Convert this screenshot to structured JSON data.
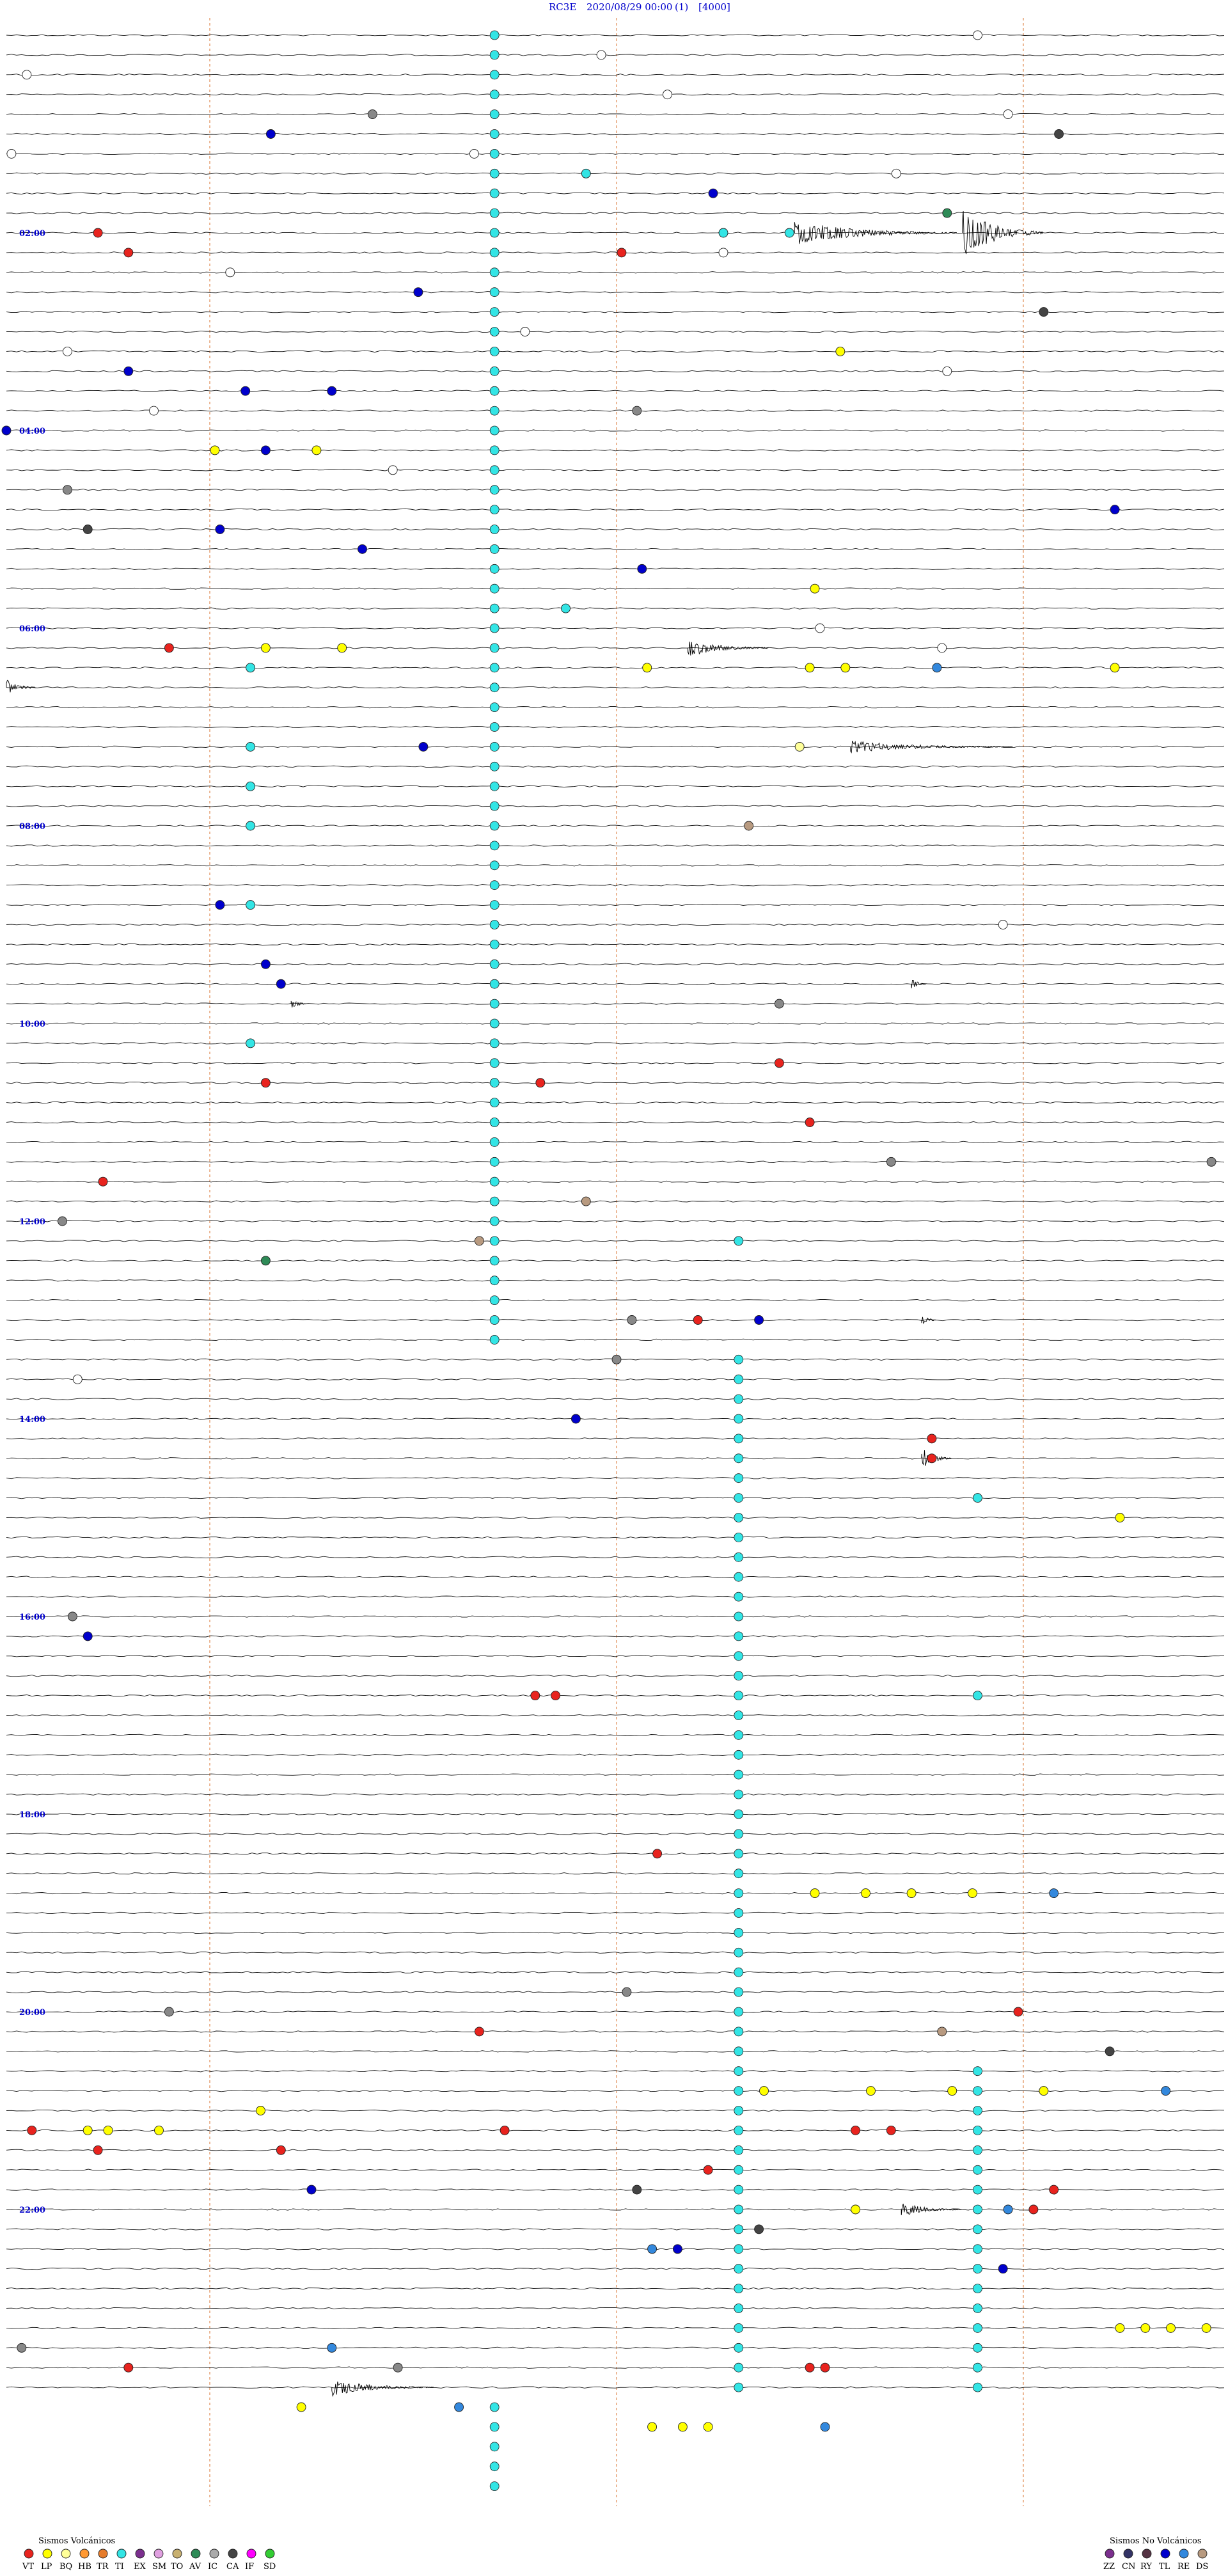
{
  "header": {
    "station": "RC3E",
    "datetime": "2020/08/29 00:00",
    "channel": "(1)",
    "scale": "[4000]"
  },
  "chart_data": {
    "type": "helicorder",
    "hour_labels": [
      "02:00",
      "04:00",
      "06:00",
      "08:00",
      "10:00",
      "12:00",
      "14:00",
      "16:00",
      "18:00",
      "20:00",
      "22:00"
    ],
    "hour_label_lines": [
      10,
      20,
      30,
      40,
      50,
      60,
      70,
      80,
      90,
      100,
      110
    ],
    "total_lines": 120,
    "minutes_per_line": 12,
    "dashed_minute_marks": [
      2,
      6,
      10
    ],
    "event_colors": {
      "VT": "#e8231e",
      "LP": "#ffff00",
      "BQ": "#ffff99",
      "HB": "#ff9933",
      "TR": "#e57c2c",
      "TI": "#33e5e5",
      "EX": "#7b2f8e",
      "SM": "#e0a0e0",
      "TO": "#c8b070",
      "AV": "#2e8b57",
      "IC": "#aaaaaa",
      "CA": "#444444",
      "IF": "#ff00ff",
      "SD": "#33cc33",
      "ZZ": "#7b2f8e",
      "CN": "#333366",
      "RY": "#553344",
      "TL": "#0000cc",
      "RE": "#3388dd",
      "DS": "#b89a80",
      "UNK": "#ffffff",
      "GRAY": "#888888"
    },
    "events": [
      {
        "line": 0,
        "min": 9.55,
        "type": "UNK"
      },
      {
        "line": 1,
        "min": 5.85,
        "type": "UNK"
      },
      {
        "line": 2,
        "min": 0.2,
        "type": "UNK"
      },
      {
        "line": 3,
        "min": 6.5,
        "type": "UNK"
      },
      {
        "line": 4,
        "min": 3.6,
        "type": "GRAY"
      },
      {
        "line": 4,
        "min": 9.85,
        "type": "UNK"
      },
      {
        "line": 5,
        "min": 2.6,
        "type": "TL"
      },
      {
        "line": 5,
        "min": 10.35,
        "type": "CA"
      },
      {
        "line": 6,
        "min": 0.05,
        "type": "UNK"
      },
      {
        "line": 6,
        "min": 4.6,
        "type": "UNK"
      },
      {
        "line": 7,
        "min": 5.7,
        "type": "TI"
      },
      {
        "line": 7,
        "min": 8.75,
        "type": "UNK"
      },
      {
        "line": 8,
        "min": 6.95,
        "type": "TL"
      },
      {
        "line": 9,
        "min": 9.25,
        "type": "AV"
      },
      {
        "line": 10,
        "min": 0.9,
        "type": "VT"
      },
      {
        "line": 10,
        "min": 7.05,
        "type": "TI"
      },
      {
        "line": 10,
        "min": 7.7,
        "type": "TI"
      },
      {
        "line": 11,
        "min": 1.2,
        "type": "VT"
      },
      {
        "line": 11,
        "min": 6.05,
        "type": "VT"
      },
      {
        "line": 11,
        "min": 7.05,
        "type": "UNK"
      },
      {
        "line": 12,
        "min": 2.2,
        "type": "UNK"
      },
      {
        "line": 13,
        "min": 4.05,
        "type": "TL"
      },
      {
        "line": 14,
        "min": 10.2,
        "type": "CA"
      },
      {
        "line": 15,
        "min": 5.1,
        "type": "UNK"
      },
      {
        "line": 16,
        "min": 8.2,
        "type": "LP"
      },
      {
        "line": 16,
        "min": 0.6,
        "type": "UNK"
      },
      {
        "line": 17,
        "min": 1.2,
        "type": "TL"
      },
      {
        "line": 17,
        "min": 9.25,
        "type": "UNK"
      },
      {
        "line": 18,
        "min": 2.35,
        "type": "TL"
      },
      {
        "line": 18,
        "min": 3.2,
        "type": "TL"
      },
      {
        "line": 19,
        "min": 6.2,
        "type": "GRAY"
      },
      {
        "line": 19,
        "min": 1.45,
        "type": "UNK"
      },
      {
        "line": 20,
        "min": 0.0,
        "type": "TL"
      },
      {
        "line": 21,
        "min": 2.05,
        "type": "LP"
      },
      {
        "line": 21,
        "min": 2.55,
        "type": "TL"
      },
      {
        "line": 21,
        "min": 3.05,
        "type": "LP"
      },
      {
        "line": 22,
        "min": 3.8,
        "type": "UNK"
      },
      {
        "line": 23,
        "min": 0.6,
        "type": "GRAY"
      },
      {
        "line": 24,
        "min": 10.9,
        "type": "TL"
      },
      {
        "line": 25,
        "min": 0.8,
        "type": "CA"
      },
      {
        "line": 25,
        "min": 2.1,
        "type": "TL"
      },
      {
        "line": 26,
        "min": 3.5,
        "type": "TL"
      },
      {
        "line": 27,
        "min": 6.25,
        "type": "TL"
      },
      {
        "line": 28,
        "min": 7.95,
        "type": "LP"
      },
      {
        "line": 29,
        "min": 5.5,
        "type": "TI"
      },
      {
        "line": 30,
        "min": 8.0,
        "type": "UNK"
      },
      {
        "line": 31,
        "min": 1.6,
        "type": "VT"
      },
      {
        "line": 31,
        "min": 2.55,
        "type": "LP"
      },
      {
        "line": 31,
        "min": 3.3,
        "type": "LP"
      },
      {
        "line": 31,
        "min": 9.2,
        "type": "UNK"
      },
      {
        "line": 32,
        "min": 2.4,
        "type": "TI"
      },
      {
        "line": 32,
        "min": 6.3,
        "type": "LP"
      },
      {
        "line": 32,
        "min": 7.9,
        "type": "LP"
      },
      {
        "line": 32,
        "min": 8.25,
        "type": "LP"
      },
      {
        "line": 32,
        "min": 9.15,
        "type": "RE"
      },
      {
        "line": 32,
        "min": 10.9,
        "type": "LP"
      },
      {
        "line": 36,
        "min": 2.4,
        "type": "TI"
      },
      {
        "line": 36,
        "min": 4.1,
        "type": "TL"
      },
      {
        "line": 36,
        "min": 7.8,
        "type": "BQ"
      },
      {
        "line": 38,
        "min": 2.4,
        "type": "TI"
      },
      {
        "line": 40,
        "min": 2.4,
        "type": "TI"
      },
      {
        "line": 40,
        "min": 7.3,
        "type": "DS"
      },
      {
        "line": 44,
        "min": 2.1,
        "type": "TL"
      },
      {
        "line": 44,
        "min": 2.4,
        "type": "TI"
      },
      {
        "line": 45,
        "min": 9.8,
        "type": "UNK"
      },
      {
        "line": 47,
        "min": 2.55,
        "type": "TL"
      },
      {
        "line": 48,
        "min": 2.7,
        "type": "TL"
      },
      {
        "line": 49,
        "min": 7.6,
        "type": "GRAY"
      },
      {
        "line": 51,
        "min": 2.4,
        "type": "TI"
      },
      {
        "line": 52,
        "min": 7.6,
        "type": "VT"
      },
      {
        "line": 53,
        "min": 2.55,
        "type": "VT"
      },
      {
        "line": 53,
        "min": 5.25,
        "type": "VT"
      },
      {
        "line": 55,
        "min": 7.9,
        "type": "VT"
      },
      {
        "line": 57,
        "min": 8.7,
        "type": "GRAY"
      },
      {
        "line": 57,
        "min": 11.85,
        "type": "GRAY"
      },
      {
        "line": 58,
        "min": 0.95,
        "type": "VT"
      },
      {
        "line": 59,
        "min": 5.7,
        "type": "DS"
      },
      {
        "line": 60,
        "min": 0.55,
        "type": "GRAY"
      },
      {
        "line": 61,
        "min": 4.65,
        "type": "DS"
      },
      {
        "line": 61,
        "min": 7.2,
        "type": "TI"
      },
      {
        "line": 62,
        "min": 2.55,
        "type": "AV"
      },
      {
        "line": 65,
        "min": 6.15,
        "type": "GRAY"
      },
      {
        "line": 65,
        "min": 6.8,
        "type": "VT"
      },
      {
        "line": 65,
        "min": 7.4,
        "type": "TL"
      },
      {
        "line": 67,
        "min": 6.0,
        "type": "GRAY"
      },
      {
        "line": 68,
        "min": 0.7,
        "type": "UNK"
      },
      {
        "line": 70,
        "min": 5.6,
        "type": "TL"
      },
      {
        "line": 71,
        "min": 9.1,
        "type": "VT"
      },
      {
        "line": 72,
        "min": 9.1,
        "type": "VT"
      },
      {
        "line": 74,
        "min": 9.55,
        "type": "TI"
      },
      {
        "line": 75,
        "min": 10.95,
        "type": "LP"
      },
      {
        "line": 80,
        "min": 0.65,
        "type": "GRAY"
      },
      {
        "line": 81,
        "min": 0.8,
        "type": "TL"
      },
      {
        "line": 84,
        "min": 5.2,
        "type": "VT"
      },
      {
        "line": 84,
        "min": 5.4,
        "type": "VT"
      },
      {
        "line": 84,
        "min": 9.55,
        "type": "TI"
      },
      {
        "line": 92,
        "min": 6.4,
        "type": "VT"
      },
      {
        "line": 94,
        "min": 7.95,
        "type": "LP"
      },
      {
        "line": 94,
        "min": 8.45,
        "type": "LP"
      },
      {
        "line": 94,
        "min": 8.9,
        "type": "LP"
      },
      {
        "line": 94,
        "min": 9.5,
        "type": "LP"
      },
      {
        "line": 94,
        "min": 10.3,
        "type": "RE"
      },
      {
        "line": 99,
        "min": 6.1,
        "type": "GRAY"
      },
      {
        "line": 100,
        "min": 1.6,
        "type": "GRAY"
      },
      {
        "line": 100,
        "min": 9.95,
        "type": "VT"
      },
      {
        "line": 101,
        "min": 4.65,
        "type": "VT"
      },
      {
        "line": 101,
        "min": 9.2,
        "type": "DS"
      },
      {
        "line": 102,
        "min": 10.85,
        "type": "CA"
      },
      {
        "line": 104,
        "min": 7.45,
        "type": "LP"
      },
      {
        "line": 104,
        "min": 8.5,
        "type": "LP"
      },
      {
        "line": 104,
        "min": 9.3,
        "type": "LP"
      },
      {
        "line": 104,
        "min": 10.2,
        "type": "LP"
      },
      {
        "line": 104,
        "min": 11.4,
        "type": "RE"
      },
      {
        "line": 105,
        "min": 2.5,
        "type": "LP"
      },
      {
        "line": 106,
        "min": 0.25,
        "type": "VT"
      },
      {
        "line": 106,
        "min": 0.8,
        "type": "LP"
      },
      {
        "line": 106,
        "min": 1.0,
        "type": "LP"
      },
      {
        "line": 106,
        "min": 1.5,
        "type": "LP"
      },
      {
        "line": 106,
        "min": 4.9,
        "type": "VT"
      },
      {
        "line": 106,
        "min": 8.35,
        "type": "VT"
      },
      {
        "line": 106,
        "min": 8.7,
        "type": "VT"
      },
      {
        "line": 107,
        "min": 0.9,
        "type": "VT"
      },
      {
        "line": 107,
        "min": 2.7,
        "type": "VT"
      },
      {
        "line": 108,
        "min": 6.9,
        "type": "VT"
      },
      {
        "line": 109,
        "min": 3.0,
        "type": "TL"
      },
      {
        "line": 109,
        "min": 6.2,
        "type": "CA"
      },
      {
        "line": 109,
        "min": 10.3,
        "type": "VT"
      },
      {
        "line": 110,
        "min": 8.35,
        "type": "LP"
      },
      {
        "line": 110,
        "min": 9.85,
        "type": "RE"
      },
      {
        "line": 110,
        "min": 10.1,
        "type": "VT"
      },
      {
        "line": 111,
        "min": 7.4,
        "type": "CA"
      },
      {
        "line": 112,
        "min": 6.35,
        "type": "RE"
      },
      {
        "line": 112,
        "min": 6.6,
        "type": "TL"
      },
      {
        "line": 113,
        "min": 9.8,
        "type": "TL"
      },
      {
        "line": 116,
        "min": 10.95,
        "type": "LP"
      },
      {
        "line": 116,
        "min": 11.2,
        "type": "LP"
      },
      {
        "line": 116,
        "min": 11.45,
        "type": "LP"
      },
      {
        "line": 116,
        "min": 11.8,
        "type": "LP"
      },
      {
        "line": 117,
        "min": 3.2,
        "type": "RE"
      },
      {
        "line": 117,
        "min": 0.15,
        "type": "GRAY"
      },
      {
        "line": 118,
        "min": 1.2,
        "type": "VT"
      },
      {
        "line": 118,
        "min": 3.85,
        "type": "GRAY"
      },
      {
        "line": 118,
        "min": 7.9,
        "type": "VT"
      },
      {
        "line": 118,
        "min": 8.05,
        "type": "VT"
      },
      {
        "line": 120,
        "min": 2.9,
        "type": "LP"
      },
      {
        "line": 120,
        "min": 4.45,
        "type": "RE"
      },
      {
        "line": 121,
        "min": 6.35,
        "type": "LP"
      },
      {
        "line": 121,
        "min": 6.65,
        "type": "LP"
      },
      {
        "line": 121,
        "min": 6.9,
        "type": "LP"
      },
      {
        "line": 121,
        "min": 8.05,
        "type": "RE"
      }
    ],
    "ti_columns": [
      {
        "min": 4.8,
        "from_line": 0,
        "to_line": 67
      },
      {
        "min": 7.2,
        "from_line": 67,
        "to_line": 120
      },
      {
        "min": 9.55,
        "from_line": 103,
        "to_line": 120
      },
      {
        "min": 4.8,
        "from_line": 120,
        "to_line": 125
      }
    ],
    "bursts": [
      {
        "line": 10,
        "min": 7.75,
        "amp": 14,
        "len": 1.6
      },
      {
        "line": 10,
        "min": 9.4,
        "amp": 30,
        "len": 0.8
      },
      {
        "line": 31,
        "min": 6.7,
        "amp": 10,
        "len": 0.8
      },
      {
        "line": 33,
        "min": 0.0,
        "amp": 10,
        "len": 0.3
      },
      {
        "line": 36,
        "min": 8.3,
        "amp": 7,
        "len": 1.6
      },
      {
        "line": 48,
        "min": 8.9,
        "amp": 8,
        "len": 0.15
      },
      {
        "line": 49,
        "min": 2.8,
        "amp": 8,
        "len": 0.15
      },
      {
        "line": 65,
        "min": 9.0,
        "amp": 9,
        "len": 0.15
      },
      {
        "line": 72,
        "min": 9.0,
        "amp": 13,
        "len": 0.3
      },
      {
        "line": 110,
        "min": 8.8,
        "amp": 8,
        "len": 0.6
      },
      {
        "line": 119,
        "min": 3.2,
        "amp": 10,
        "len": 1.0
      }
    ]
  },
  "legend": {
    "volcanic_title": "Sismos Volcánicos",
    "volcanic": [
      {
        "code": "VT",
        "label": "VT"
      },
      {
        "code": "LP",
        "label": "LP"
      },
      {
        "code": "BQ",
        "label": "BQ"
      },
      {
        "code": "HB",
        "label": "HB"
      },
      {
        "code": "TR",
        "label": "TR"
      },
      {
        "code": "TI",
        "label": "TI"
      },
      {
        "code": "EX",
        "label": "EX"
      },
      {
        "code": "SM",
        "label": "SM"
      },
      {
        "code": "TO",
        "label": "TO"
      },
      {
        "code": "AV",
        "label": "AV"
      },
      {
        "code": "IC",
        "label": "IC"
      },
      {
        "code": "CA",
        "label": "CA"
      },
      {
        "code": "IF",
        "label": "IF"
      },
      {
        "code": "SD",
        "label": "SD"
      }
    ],
    "non_volcanic_title": "Sismos No Volcánicos",
    "non_volcanic": [
      {
        "code": "ZZ",
        "label": "ZZ"
      },
      {
        "code": "CN",
        "label": "CN"
      },
      {
        "code": "RY",
        "label": "RY"
      },
      {
        "code": "TL",
        "label": "TL"
      },
      {
        "code": "RE",
        "label": "RE"
      },
      {
        "code": "DS",
        "label": "DS"
      }
    ]
  }
}
